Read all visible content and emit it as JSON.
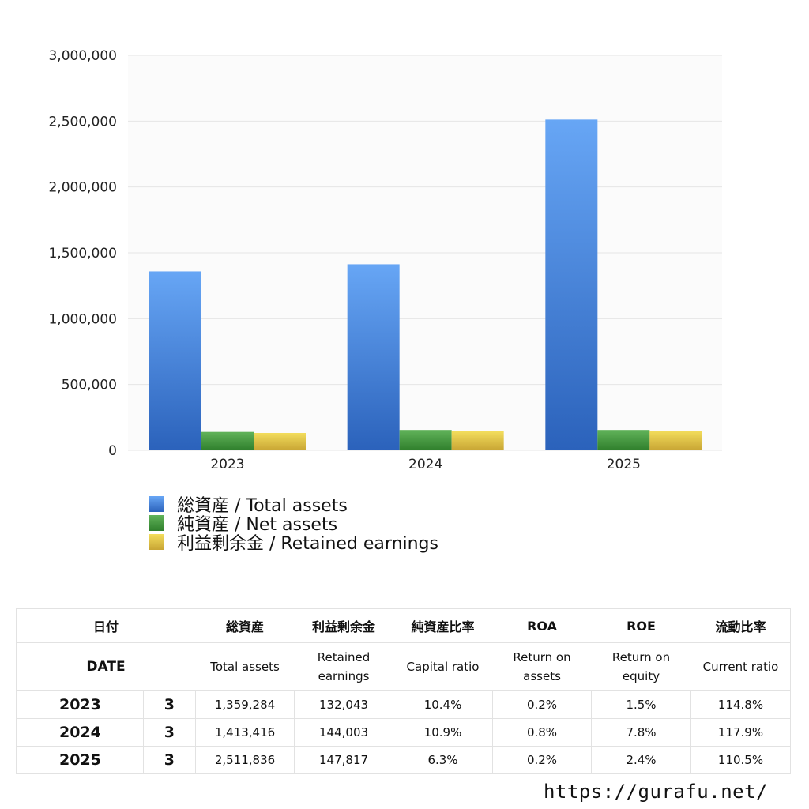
{
  "chart_data": {
    "type": "bar",
    "categories": [
      "2023",
      "2024",
      "2025"
    ],
    "ylim": [
      0,
      3000000
    ],
    "yticks": [
      {
        "value": 0,
        "label": "0"
      },
      {
        "value": 500000,
        "label": "500,000"
      },
      {
        "value": 1000000,
        "label": "1,000,000"
      },
      {
        "value": 1500000,
        "label": "1,500,000"
      },
      {
        "value": 2000000,
        "label": "2,000,000"
      },
      {
        "value": 2500000,
        "label": "2,500,000"
      },
      {
        "value": 3000000,
        "label": "3,000,000"
      }
    ],
    "grid": true,
    "legend_position": "bottom-left",
    "series": [
      {
        "name": "総資産 / Total assets",
        "values": [
          1359284,
          1413416,
          2511836
        ],
        "color_top": "#67a6f5",
        "color_bottom": "#2b62bb"
      },
      {
        "name": "純資産 / Net assets",
        "values": [
          140000,
          155000,
          155000
        ],
        "color_top": "#61b35a",
        "color_bottom": "#2f7f2c"
      },
      {
        "name": "利益剰余金 / Retained earnings",
        "values": [
          132043,
          144003,
          147817
        ],
        "color_top": "#f3dd5c",
        "color_bottom": "#c8a534"
      }
    ]
  },
  "table": {
    "header_jp": {
      "date": "日付",
      "total_assets": "総資産",
      "retained": "利益剰余金",
      "capital_ratio": "純資産比率",
      "roa": "ROA",
      "roe": "ROE",
      "current_ratio": "流動比率"
    },
    "header_en": {
      "date": "DATE",
      "total_assets": "Total assets",
      "retained_1": "Retained",
      "retained_2": "earnings",
      "capital_ratio": "Capital ratio",
      "roa_1": "Return on",
      "roa_2": "assets",
      "roe_1": "Return on",
      "roe_2": "equity",
      "current_ratio": "Current ratio"
    },
    "rows": [
      {
        "year": "2023",
        "month": "3",
        "total_assets": "1,359,284",
        "retained": "132,043",
        "capital_ratio": "10.4%",
        "roa": "0.2%",
        "roe": "1.5%",
        "current_ratio": "114.8%"
      },
      {
        "year": "2024",
        "month": "3",
        "total_assets": "1,413,416",
        "retained": "144,003",
        "capital_ratio": "10.9%",
        "roa": "0.8%",
        "roe": "7.8%",
        "current_ratio": "117.9%"
      },
      {
        "year": "2025",
        "month": "3",
        "total_assets": "2,511,836",
        "retained": "147,817",
        "capital_ratio": "6.3%",
        "roa": "0.2%",
        "roe": "2.4%",
        "current_ratio": "110.5%"
      }
    ]
  },
  "footer": {
    "url": "https://gurafu.net/"
  }
}
